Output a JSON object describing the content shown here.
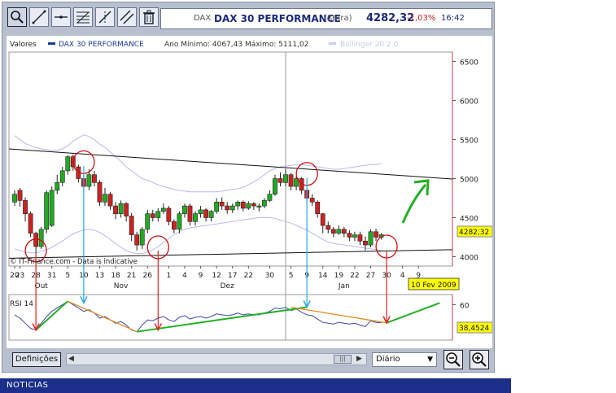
{
  "toolbar": {
    "tools": [
      "zoom-icon",
      "trend-line-icon",
      "horizontal-line-icon",
      "fibonacci-icon",
      "crosshair-icon",
      "channel-icon",
      "trash-icon"
    ]
  },
  "quote": {
    "ticker": "DAX",
    "name": "DAX 30 PERFORMANCE",
    "exchange": "(Xetra)",
    "price": "4282,32",
    "change": "-1,03%",
    "time": "16:42"
  },
  "legend": {
    "valores": "Valores",
    "series_name": "DAX 30 PERFORMANCE",
    "range_text": "Ano Mínimo: 4067,43 Máximo: 5111,02",
    "bollinger": "Bollinger 20 2.0"
  },
  "watermark": "© IT-Finance.com - Data is indicative",
  "price_badge": "4282,32",
  "date_badge": "10 Fev 2009",
  "rsi_label": "RSI 14",
  "rsi_badge": "38,4524",
  "bottombar": {
    "definitions_label": "Definições",
    "period_value": "Diário"
  },
  "news_label": "NOTICIAS",
  "colors": {
    "up": "#22aa22",
    "down": "#cc2222",
    "bollinger": "#b8b8f0",
    "circle": "#d01010",
    "red_arrow": "#e02020",
    "cyan_arrow": "#28a8e0",
    "green_trend": "#22b022",
    "orange_trend": "#e09020",
    "badge": "#ffff00"
  },
  "chart_data": {
    "type": "candlestick",
    "y_ticks": [
      4000,
      4500,
      5000,
      5500,
      6000,
      6500
    ],
    "y_range": [
      3880,
      6620
    ],
    "x_ticks": [
      {
        "label": "20",
        "i": 0
      },
      {
        "label": "23",
        "i": 1
      },
      {
        "label": "28",
        "i": 4
      },
      {
        "label": "31",
        "i": 7
      },
      {
        "label": "5",
        "i": 10
      },
      {
        "label": "10",
        "i": 13
      },
      {
        "label": "13",
        "i": 16
      },
      {
        "label": "18",
        "i": 19
      },
      {
        "label": "21",
        "i": 22
      },
      {
        "label": "26",
        "i": 25
      },
      {
        "label": "1",
        "i": 29
      },
      {
        "label": "4",
        "i": 32
      },
      {
        "label": "9",
        "i": 35
      },
      {
        "label": "12",
        "i": 38
      },
      {
        "label": "17",
        "i": 41
      },
      {
        "label": "22",
        "i": 44
      },
      {
        "label": "30",
        "i": 48
      },
      {
        "label": "5",
        "i": 52
      },
      {
        "label": "9",
        "i": 55
      },
      {
        "label": "14",
        "i": 58
      },
      {
        "label": "19",
        "i": 61
      },
      {
        "label": "22",
        "i": 64
      },
      {
        "label": "27",
        "i": 67
      },
      {
        "label": "30",
        "i": 70
      },
      {
        "label": "4",
        "i": 73
      },
      {
        "label": "9",
        "i": 76
      }
    ],
    "months": [
      {
        "label": "Out",
        "i": 5
      },
      {
        "label": "Nov",
        "i": 20
      },
      {
        "label": "Dez",
        "i": 40
      },
      {
        "label": "Jan",
        "i": 62
      }
    ],
    "candles": [
      [
        4700,
        4800,
        4650,
        4850
      ],
      [
        4850,
        4720,
        4640,
        4880
      ],
      [
        4720,
        4550,
        4450,
        4760
      ],
      [
        4550,
        4300,
        4250,
        4580
      ],
      [
        4300,
        4130,
        4040,
        4320
      ],
      [
        4130,
        4350,
        4100,
        4380
      ],
      [
        4350,
        4820,
        4300,
        4850
      ],
      [
        4400,
        4850,
        4380,
        4900
      ],
      [
        4850,
        4950,
        4800,
        5050
      ],
      [
        4950,
        5100,
        4900,
        5150
      ],
      [
        5100,
        5280,
        5050,
        5300
      ],
      [
        5280,
        5150,
        5100,
        5310
      ],
      [
        5150,
        5000,
        4950,
        5180
      ],
      [
        5000,
        4900,
        4820,
        5050
      ],
      [
        4900,
        5050,
        4850,
        5120
      ],
      [
        5050,
        4950,
        4900,
        5100
      ],
      [
        4950,
        4700,
        4650,
        4980
      ],
      [
        4700,
        4800,
        4650,
        4880
      ],
      [
        4800,
        4650,
        4600,
        4830
      ],
      [
        4650,
        4550,
        4480,
        4700
      ],
      [
        4550,
        4680,
        4500,
        4720
      ],
      [
        4680,
        4520,
        4450,
        4700
      ],
      [
        4520,
        4280,
        4200,
        4560
      ],
      [
        4280,
        4150,
        4080,
        4320
      ],
      [
        4150,
        4350,
        4100,
        4380
      ],
      [
        4350,
        4550,
        4300,
        4600
      ],
      [
        4550,
        4500,
        4450,
        4600
      ],
      [
        4500,
        4580,
        4450,
        4620
      ],
      [
        4580,
        4620,
        4550,
        4680
      ],
      [
        4620,
        4450,
        4400,
        4650
      ],
      [
        4450,
        4350,
        4300,
        4480
      ],
      [
        4350,
        4550,
        4300,
        4580
      ],
      [
        4550,
        4650,
        4500,
        4680
      ],
      [
        4650,
        4450,
        4400,
        4680
      ],
      [
        4450,
        4550,
        4400,
        4580
      ],
      [
        4550,
        4600,
        4500,
        4650
      ],
      [
        4600,
        4500,
        4450,
        4620
      ],
      [
        4500,
        4580,
        4450,
        4600
      ],
      [
        4580,
        4700,
        4550,
        4750
      ],
      [
        4700,
        4650,
        4600,
        4760
      ],
      [
        4650,
        4600,
        4550,
        4700
      ],
      [
        4600,
        4650,
        4560,
        4680
      ],
      [
        4650,
        4700,
        4600,
        4720
      ],
      [
        4700,
        4620,
        4580,
        4720
      ],
      [
        4620,
        4680,
        4600,
        4710
      ],
      [
        4680,
        4650,
        4600,
        4700
      ],
      [
        4650,
        4650,
        4580,
        4680
      ],
      [
        4650,
        4720,
        4620,
        4750
      ],
      [
        4720,
        4800,
        4700,
        4850
      ],
      [
        4800,
        5000,
        4780,
        5050
      ],
      [
        5000,
        4950,
        4900,
        5080
      ],
      [
        4950,
        5050,
        4900,
        5120
      ],
      [
        5050,
        4900,
        4850,
        5070
      ],
      [
        4900,
        5000,
        4850,
        5030
      ],
      [
        5000,
        4850,
        4800,
        5020
      ],
      [
        4850,
        4750,
        4700,
        4870
      ],
      [
        4750,
        4700,
        4650,
        4800
      ],
      [
        4700,
        4550,
        4500,
        4720
      ],
      [
        4550,
        4400,
        4300,
        4560
      ],
      [
        4400,
        4350,
        4300,
        4450
      ],
      [
        4350,
        4300,
        4250,
        4380
      ],
      [
        4300,
        4350,
        4280,
        4400
      ],
      [
        4350,
        4300,
        4250,
        4380
      ],
      [
        4300,
        4250,
        4200,
        4340
      ],
      [
        4250,
        4280,
        4200,
        4320
      ],
      [
        4280,
        4200,
        4150,
        4320
      ],
      [
        4200,
        4150,
        4080,
        4260
      ],
      [
        4150,
        4320,
        4120,
        4350
      ],
      [
        4320,
        4250,
        4200,
        4360
      ],
      [
        4250,
        4282,
        4220,
        4300
      ]
    ],
    "bollinger_upper": [
      5550,
      5500,
      5450,
      5420,
      5400,
      5380,
      5370,
      5360,
      5360,
      5380,
      5420,
      5480,
      5520,
      5560,
      5540,
      5500,
      5440,
      5400,
      5340,
      5280,
      5220,
      5150,
      5100,
      5050,
      5000,
      4980,
      4950,
      4920,
      4900,
      4880,
      4860,
      4850,
      4840,
      4830,
      4830,
      4830,
      4830,
      4830,
      4830,
      4840,
      4850,
      4860,
      4870,
      4890,
      4920,
      4960,
      5000,
      5050,
      5100,
      5130,
      5150,
      5160,
      5170,
      5180,
      5180,
      5170,
      5160,
      5150,
      5140,
      5130,
      5120,
      5120,
      5130,
      5140,
      5150,
      5160,
      5170,
      5180,
      5180,
      5190
    ],
    "bollinger_lower": [
      4100,
      4080,
      4060,
      4050,
      4050,
      4070,
      4090,
      4120,
      4160,
      4200,
      4250,
      4290,
      4320,
      4340,
      4350,
      4340,
      4310,
      4270,
      4220,
      4170,
      4120,
      4080,
      4050,
      4040,
      4040,
      4060,
      4090,
      4130,
      4180,
      4230,
      4280,
      4320,
      4350,
      4370,
      4380,
      4390,
      4400,
      4410,
      4420,
      4430,
      4440,
      4450,
      4460,
      4470,
      4480,
      4490,
      4500,
      4500,
      4500,
      4490,
      4470,
      4450,
      4430,
      4400,
      4370,
      4340,
      4300,
      4260,
      4220,
      4190,
      4170,
      4160,
      4150,
      4140,
      4130,
      4120,
      4110,
      4100,
      4090,
      4080
    ],
    "rsi": [
      48,
      44,
      38,
      32,
      30,
      38,
      46,
      52,
      56,
      60,
      64,
      60,
      56,
      52,
      54,
      50,
      44,
      46,
      42,
      38,
      40,
      36,
      30,
      28,
      36,
      42,
      41,
      44,
      46,
      42,
      40,
      45,
      47,
      43,
      45,
      46,
      44,
      46,
      49,
      48,
      47,
      48,
      50,
      48,
      49,
      48,
      48,
      50,
      52,
      56,
      55,
      57,
      53,
      55,
      51,
      48,
      47,
      43,
      39,
      38,
      37,
      39,
      38,
      37,
      38,
      36,
      34,
      41,
      39,
      38.45
    ],
    "rsi_ticks": [
      60
    ]
  }
}
